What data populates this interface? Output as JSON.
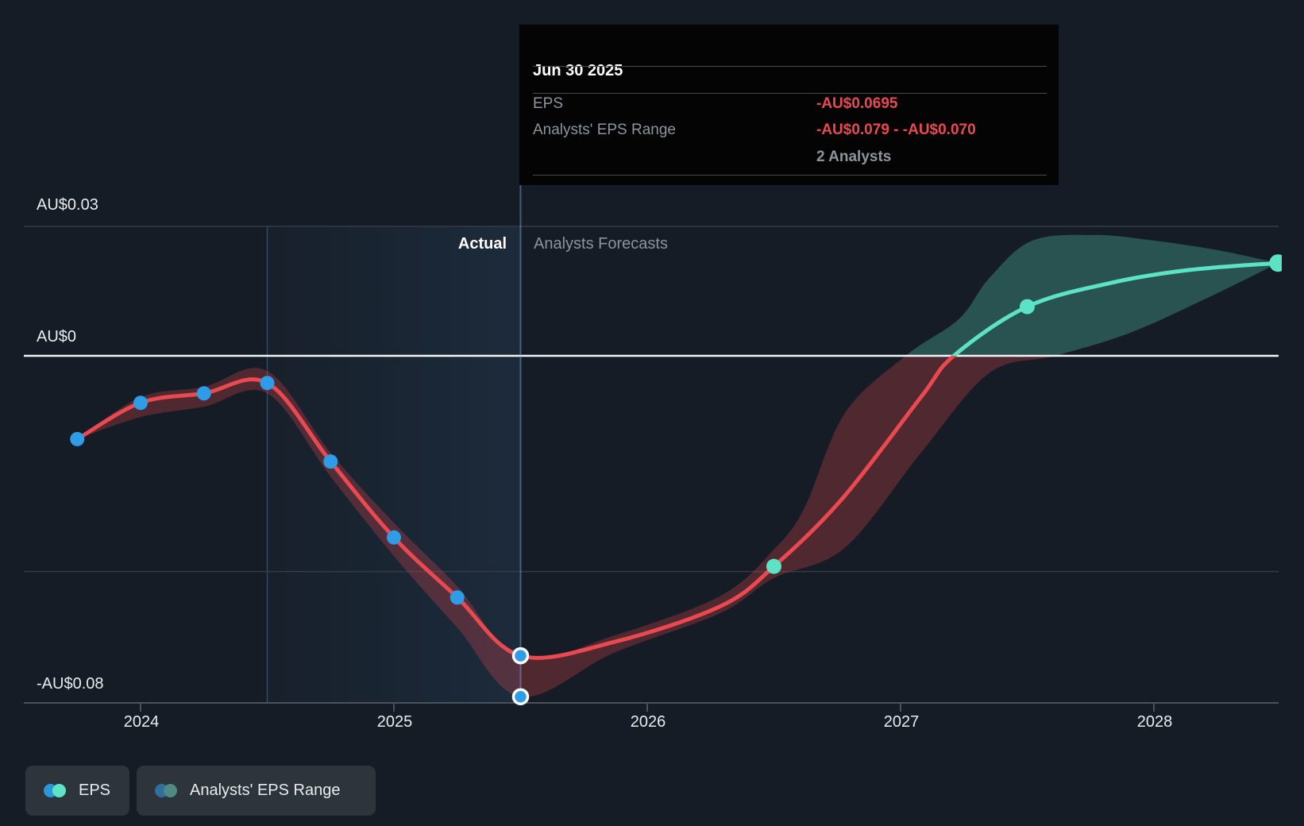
{
  "page": {
    "background": "#161c25"
  },
  "tooltip": {
    "date": "Jun 30 2025",
    "rows": [
      {
        "label": "EPS",
        "value": "-AU$0.0695"
      },
      {
        "label": "Analysts' EPS Range",
        "value": "-AU$0.079 - -AU$0.070"
      }
    ],
    "analysts_note": "2 Analysts",
    "value_color": "#e9494f"
  },
  "chart_data": {
    "type": "line",
    "currency": "AU$",
    "x_axis": {
      "ticks": [
        2024,
        2025,
        2026,
        2027,
        2028
      ],
      "labels": [
        "2024",
        "2025",
        "2026",
        "2027",
        "2028"
      ]
    },
    "y_axis": {
      "ticks": [
        {
          "label": "AU$0.03",
          "value": 0.03
        },
        {
          "label": "AU$0",
          "value": 0
        },
        {
          "label": null,
          "value": -0.05
        },
        {
          "label": "-AU$0.08",
          "value": -0.08
        }
      ]
    },
    "regions": {
      "actual_label": "Actual",
      "forecast_label": "Analysts Forecasts",
      "actual_band": [
        2024.5,
        2025.5
      ],
      "hover_time": 2025.5
    },
    "series": [
      {
        "name": "EPS (actual)",
        "points": [
          [
            "Sep 2023",
            -0.0193
          ],
          [
            "Dec 2023",
            -0.0109
          ],
          [
            "Mar 2024",
            -0.0087
          ],
          [
            "Jun 2024",
            -0.0063
          ],
          [
            "Sep 2024",
            -0.0245
          ],
          [
            "Dec 2024",
            -0.0421
          ],
          [
            "Mar 2025",
            -0.056
          ],
          [
            "Jun 2025",
            -0.0695
          ]
        ]
      },
      {
        "name": "EPS (analysts forecast)",
        "points": [
          [
            "Jun 2026",
            -0.0488
          ],
          [
            "Jun 2027",
            0.0114
          ],
          [
            "Jun 2028",
            0.0215
          ]
        ]
      },
      {
        "name": "Analysts' EPS Range at Jun 30 2025",
        "low": -0.079,
        "high": -0.07,
        "analysts": 2
      }
    ],
    "colors": {
      "actual_line": "#e9494f",
      "forecast_line": "#5ce3c5",
      "actual_marker": "#2f9ce8",
      "forecast_marker": "#5ce3c5",
      "band_below_zero": "rgba(233,73,79,0.28)",
      "band_above_zero": "rgba(92,227,197,0.28)",
      "zero_line": "#f2f4f6",
      "grid": "#343b45",
      "axis": "#4a515b",
      "highlight": "rgba(70,150,220,0.12)",
      "cursor": "rgba(125,175,225,0.45)"
    },
    "render": {
      "line": [
        [
          2023.75,
          -0.0193
        ],
        [
          2024,
          -0.0109
        ],
        [
          2024.25,
          -0.0087
        ],
        [
          2024.5,
          -0.0063
        ],
        [
          2024.75,
          -0.0245
        ],
        [
          2025,
          -0.0421
        ],
        [
          2025.25,
          -0.056
        ],
        [
          2025.5,
          -0.0695
        ],
        [
          2025.87,
          -0.0663
        ],
        [
          2026.29,
          -0.058
        ],
        [
          2026.5,
          -0.0488
        ],
        [
          2026.77,
          -0.0331
        ],
        [
          2027.08,
          -0.0096
        ],
        [
          2027.21,
          0
        ],
        [
          2027.5,
          0.0114
        ],
        [
          2027.83,
          0.0169
        ],
        [
          2028.14,
          0.0199
        ],
        [
          2028.49,
          0.0215
        ]
      ],
      "band_upper": [
        [
          2023.75,
          -0.0193
        ],
        [
          2024,
          -0.0096
        ],
        [
          2024.25,
          -0.0072
        ],
        [
          2024.5,
          -0.0035
        ],
        [
          2024.75,
          -0.0225
        ],
        [
          2025,
          -0.0387
        ],
        [
          2025.25,
          -0.0534
        ],
        [
          2025.5,
          -0.07
        ],
        [
          2025.87,
          -0.0648
        ],
        [
          2026.29,
          -0.0556
        ],
        [
          2026.5,
          -0.0449
        ],
        [
          2026.62,
          -0.0353
        ],
        [
          2026.78,
          -0.0133
        ],
        [
          2027.02,
          0
        ],
        [
          2027.23,
          0.0085
        ],
        [
          2027.35,
          0.018
        ],
        [
          2027.52,
          0.0267
        ],
        [
          2027.77,
          0.028
        ],
        [
          2028,
          0.0267
        ],
        [
          2028.25,
          0.0245
        ],
        [
          2028.49,
          0.0215
        ]
      ],
      "band_lower": [
        [
          2023.75,
          -0.0193
        ],
        [
          2024,
          -0.0142
        ],
        [
          2024.25,
          -0.0118
        ],
        [
          2024.5,
          -0.0087
        ],
        [
          2024.75,
          -0.028
        ],
        [
          2025,
          -0.0464
        ],
        [
          2025.25,
          -0.063
        ],
        [
          2025.5,
          -0.079
        ],
        [
          2025.87,
          -0.0688
        ],
        [
          2026.29,
          -0.0596
        ],
        [
          2026.5,
          -0.0515
        ],
        [
          2026.78,
          -0.0445
        ],
        [
          2027.08,
          -0.0225
        ],
        [
          2027.35,
          -0.004
        ],
        [
          2027.61,
          0
        ],
        [
          2027.9,
          0.0052
        ],
        [
          2028.2,
          0.0131
        ],
        [
          2028.49,
          0.0215
        ]
      ],
      "markers_actual": [
        [
          2023.75,
          -0.0193
        ],
        [
          2024,
          -0.0109
        ],
        [
          2024.25,
          -0.0087
        ],
        [
          2024.5,
          -0.0063
        ],
        [
          2024.75,
          -0.0245
        ],
        [
          2025,
          -0.0421
        ],
        [
          2025.25,
          -0.056
        ]
      ],
      "markers_hover": [
        [
          2025.5,
          -0.0695
        ],
        [
          2025.5,
          -0.079
        ]
      ],
      "markers_forecast": [
        [
          2026.5,
          -0.0488
        ],
        [
          2027.5,
          0.0114
        ]
      ],
      "end_marker": [
        2028.49,
        0.0215
      ]
    }
  },
  "legend": [
    {
      "label": "EPS",
      "colors": [
        "#2898d8",
        "#5ee3c7"
      ]
    },
    {
      "label": "Analysts' EPS Range",
      "colors": [
        "#2f6f9d",
        "#4f8b84"
      ]
    }
  ]
}
